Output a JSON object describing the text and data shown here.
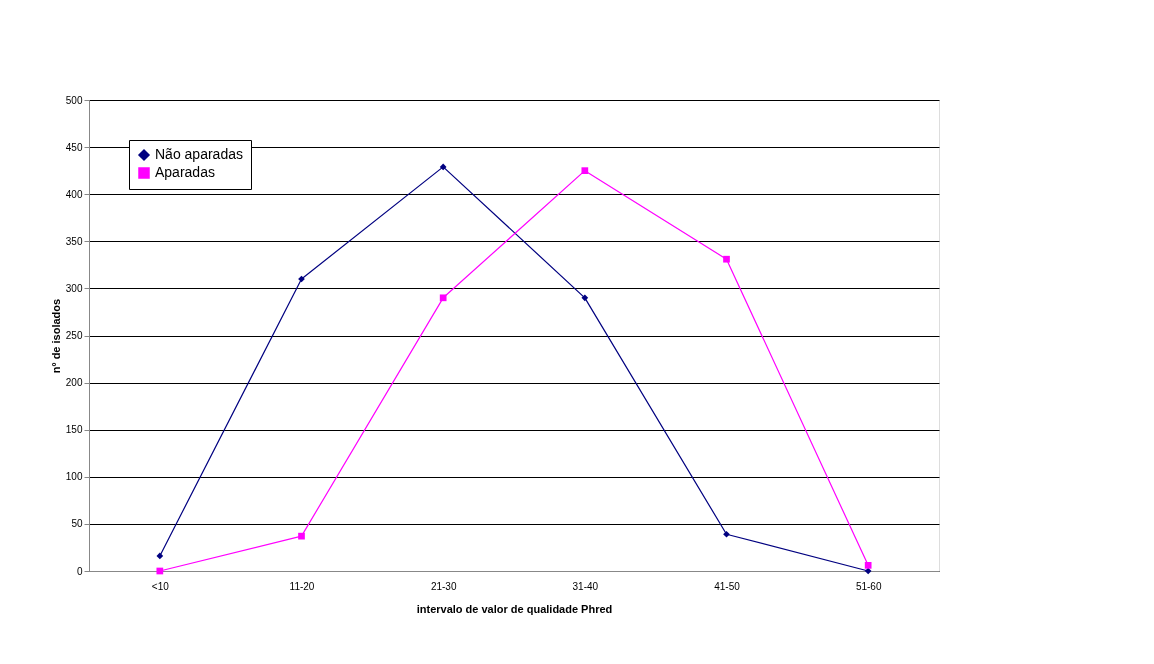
{
  "chart_data": {
    "type": "line",
    "xlabel": "intervalo de valor de qualidade Phred",
    "ylabel": "nº de isolados",
    "categories": [
      "<10",
      "11-20",
      "21-30",
      "31-40",
      "41-50",
      "51-60"
    ],
    "series": [
      {
        "name": "Não aparadas",
        "color": "#000080",
        "marker": "diamond",
        "values": [
          16,
          310,
          429,
          290,
          39,
          0
        ]
      },
      {
        "name": "Aparadas",
        "color": "#ff00ff",
        "marker": "square",
        "values": [
          0,
          37,
          290,
          425,
          331,
          6
        ]
      }
    ],
    "ylim": [
      0,
      500
    ],
    "yticks": [
      0,
      50,
      100,
      150,
      200,
      250,
      300,
      350,
      400,
      450,
      500
    ],
    "grid": "y",
    "legend": "top left",
    "line_style": "solid"
  }
}
